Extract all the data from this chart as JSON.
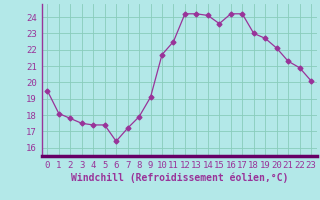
{
  "x": [
    0,
    1,
    2,
    3,
    4,
    5,
    6,
    7,
    8,
    9,
    10,
    11,
    12,
    13,
    14,
    15,
    16,
    17,
    18,
    19,
    20,
    21,
    22,
    23
  ],
  "y": [
    19.5,
    18.1,
    17.8,
    17.5,
    17.4,
    17.4,
    16.4,
    17.2,
    17.9,
    19.1,
    21.7,
    22.5,
    24.2,
    24.2,
    24.1,
    23.6,
    24.2,
    24.2,
    23.0,
    22.7,
    22.1,
    21.3,
    20.9,
    20.1
  ],
  "line_color": "#993399",
  "marker": "D",
  "marker_size": 2.5,
  "bg_color": "#b3e8e8",
  "grid_color": "#88ccbb",
  "xlabel": "Windchill (Refroidissement éolien,°C)",
  "xlabel_fontsize": 7,
  "ylabel_ticks": [
    16,
    17,
    18,
    19,
    20,
    21,
    22,
    23,
    24
  ],
  "xlim": [
    -0.5,
    23.5
  ],
  "ylim": [
    15.5,
    24.8
  ],
  "tick_fontsize": 6.5,
  "label_color": "#993399",
  "spine_color": "#993399",
  "axis_bar_color": "#660066",
  "figsize": [
    3.2,
    2.0
  ],
  "dpi": 100
}
